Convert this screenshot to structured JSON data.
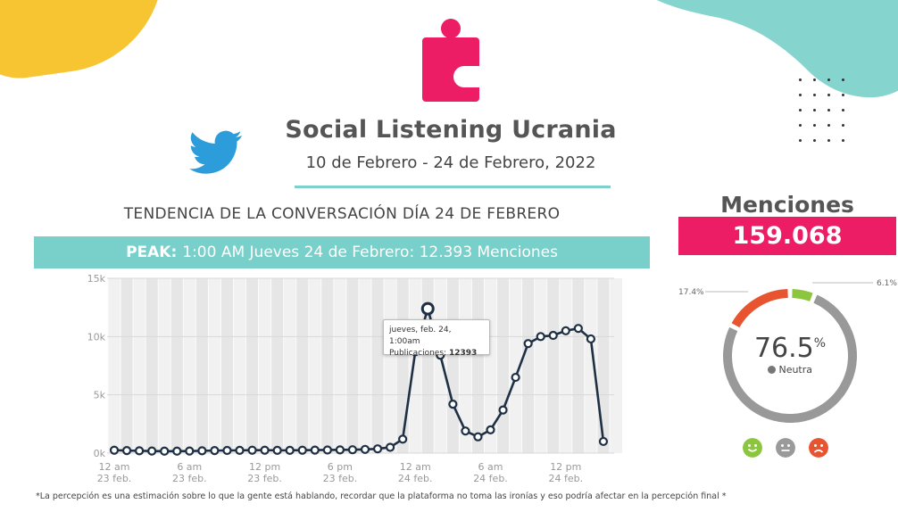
{
  "header": {
    "title": "Social Listening Ucrania",
    "date_range": "10 de Febrero - 24 de Febrero, 2022"
  },
  "chart_heading": "TENDENCIA DE LA CONVERSACIÓN DÍA 24 DE FEBRERO",
  "peak": {
    "label": "PEAK:",
    "text": "1:00 AM Jueves 24 de Febrero: 12.393 Menciones"
  },
  "tooltip": {
    "line1": "jueves, feb. 24, 1:00am",
    "line2_label": "Publicaciones:",
    "line2_value": "12393"
  },
  "mentions": {
    "title": "Menciones",
    "value": "159.068"
  },
  "sentiment": {
    "neutral_value": "76.5",
    "neutral_unit": "%",
    "neutral_label": "Neutra",
    "negative_label": "17.4%",
    "positive_label": "6.1%",
    "neutral_pct": 76.5,
    "negative_pct": 17.4,
    "positive_pct": 6.1,
    "colors": {
      "neutral": "#999999",
      "negative": "#e8542f",
      "positive": "#8cc63f"
    }
  },
  "footnote": "*La percepción es una estimación sobre lo que la gente está hablando, recordar que la plataforma no toma las ironías y eso podría afectar en la percepción final *",
  "colors": {
    "teal": "#79cfc9",
    "pink": "#ec1d64",
    "yellow": "#f7c531",
    "line": "#1f3044",
    "twitter": "#2d9cdb"
  },
  "chart_data": {
    "type": "line",
    "title": "TENDENCIA DE LA CONVERSACIÓN DÍA 24 DE FEBRERO",
    "xlabel": "",
    "ylabel": "",
    "ylim": [
      0,
      15000
    ],
    "y_ticks": [
      "0k",
      "5k",
      "10k",
      "15k"
    ],
    "x_tick_labels": [
      [
        "12 am",
        "23 feb."
      ],
      [
        "6 am",
        "23 feb."
      ],
      [
        "12 pm",
        "23 feb."
      ],
      [
        "6 pm",
        "23 feb."
      ],
      [
        "12 am",
        "24 feb."
      ],
      [
        "6 am",
        "24 feb."
      ],
      [
        "12 pm",
        "24 feb."
      ]
    ],
    "x_tick_hours": [
      0,
      6,
      12,
      18,
      24,
      30,
      36
    ],
    "grid": true,
    "series": [
      {
        "values": [
          250,
          220,
          200,
          180,
          170,
          170,
          180,
          200,
          220,
          230,
          240,
          250,
          250,
          240,
          240,
          250,
          260,
          270,
          280,
          290,
          320,
          370,
          500,
          1200,
          8700,
          12393,
          8400,
          4200,
          1900,
          1400,
          2000,
          3700,
          6500,
          9400,
          10000,
          10100,
          10500,
          10700,
          9800,
          1000
        ]
      }
    ],
    "peak_index": 25
  }
}
